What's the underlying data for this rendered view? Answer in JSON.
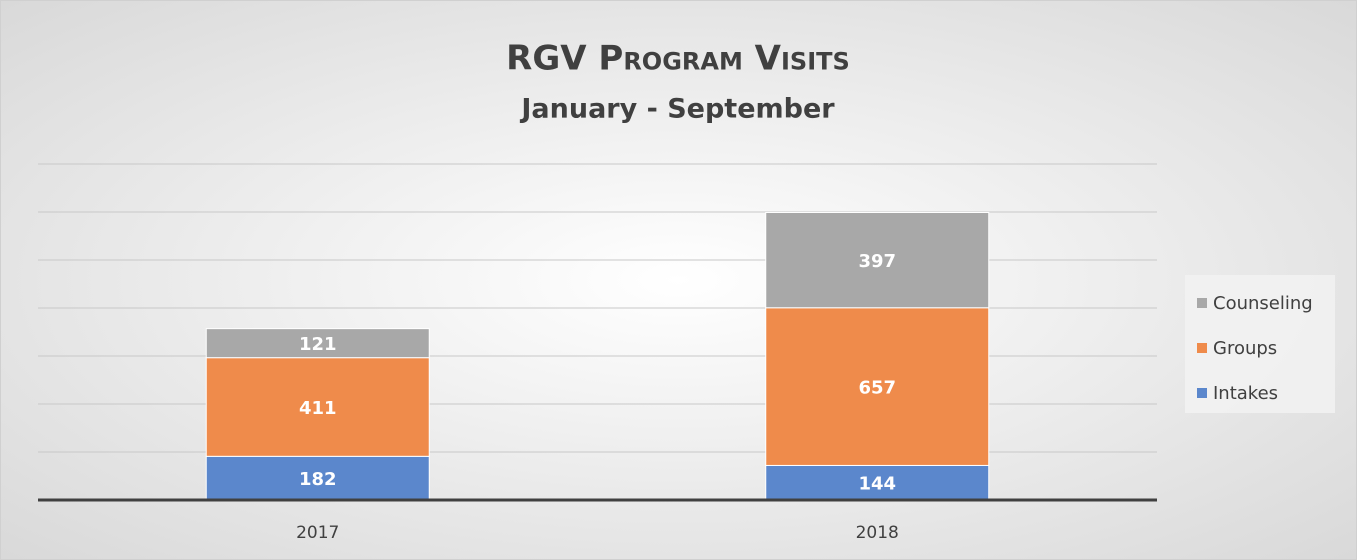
{
  "chart_data": {
    "type": "stacked_bar",
    "title": "RGV Program Visits",
    "subtitle": "January - September",
    "categories": [
      "2017",
      "2018"
    ],
    "series": [
      {
        "name": "Intakes",
        "color": "#5b87cc",
        "values": [
          182,
          144
        ]
      },
      {
        "name": "Groups",
        "color": "#ef8b4b",
        "values": [
          411,
          657
        ]
      },
      {
        "name": "Counseling",
        "color": "#a8a8a8",
        "values": [
          121,
          397
        ]
      }
    ],
    "ylim": [
      0,
      1400
    ],
    "yticks": [
      0,
      200,
      400,
      600,
      800,
      1000,
      1200,
      1400
    ],
    "grid": true,
    "legend": "right"
  }
}
